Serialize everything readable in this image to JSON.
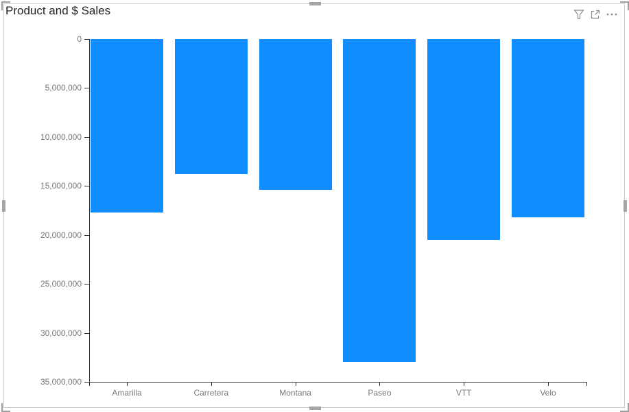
{
  "visual": {
    "title": "Product and $ Sales",
    "header_icons": [
      {
        "name": "filter-icon",
        "tooltip": "Filters"
      },
      {
        "name": "focus-mode-icon",
        "tooltip": "Focus mode"
      },
      {
        "name": "more-options-icon",
        "tooltip": "More options"
      }
    ]
  },
  "chart_data": {
    "type": "bar",
    "title": "Product and $ Sales",
    "categories": [
      "Amarilla",
      "Carretera",
      "Montana",
      "Paseo",
      "VTT",
      "Velo"
    ],
    "values": [
      17700000,
      13800000,
      15400000,
      33000000,
      20500000,
      18200000
    ],
    "xlabel": "",
    "ylabel": "",
    "ylim": [
      0,
      35000000
    ],
    "y_axis_inverted": true,
    "y_ticks": [
      0,
      5000000,
      10000000,
      15000000,
      20000000,
      25000000,
      30000000,
      35000000
    ],
    "y_tick_labels": [
      "0",
      "5,000,000",
      "10,000,000",
      "15,000,000",
      "20,000,000",
      "25,000,000",
      "30,000,000",
      "35,000,000"
    ],
    "bar_color": "#118DFF",
    "grid": false,
    "legend": "none"
  },
  "colors": {
    "bar": "#118DFF",
    "title_text": "#252423",
    "axis_text": "#777777",
    "axis_line": "#333333",
    "frame_border": "#C8C8C8",
    "resize_handle": "#A6A6A6",
    "background": "#FFFFFF"
  }
}
